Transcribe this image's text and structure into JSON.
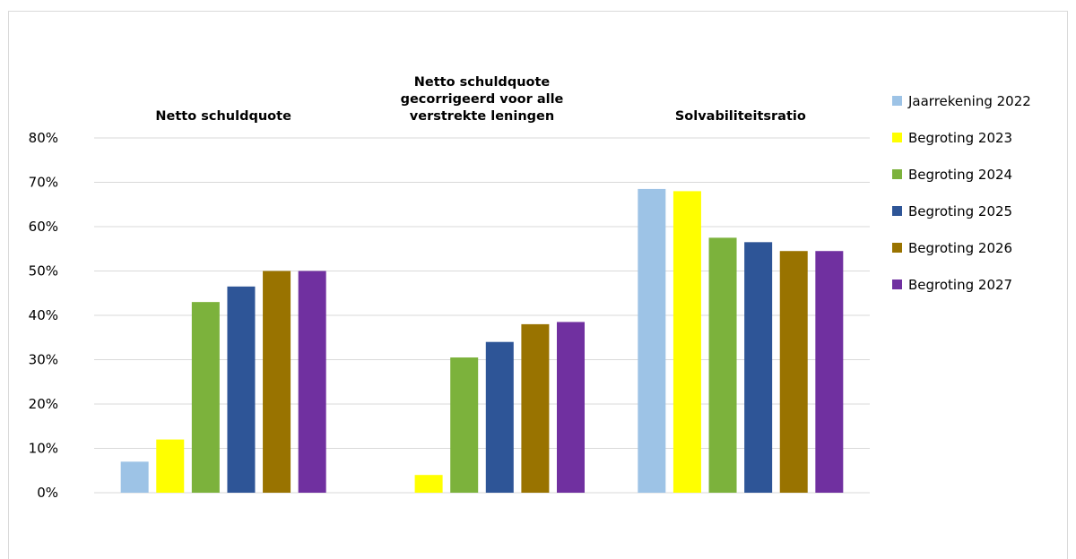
{
  "chart_data": {
    "type": "bar",
    "categories": [
      [
        "Netto schuldquote"
      ],
      [
        "Netto schuldquote",
        "gecorrigeerd voor alle",
        "verstrekte leningen"
      ],
      [
        "Solvabiliteitsratio"
      ]
    ],
    "y_ticks": [
      "0%",
      "10%",
      "20%",
      "30%",
      "40%",
      "50%",
      "60%",
      "70%",
      "80%"
    ],
    "ylim": [
      0,
      80
    ],
    "grid": true,
    "legend_position": "right",
    "series": [
      {
        "name": "Jaarrekening 2022",
        "color": "#9dc3e6",
        "values": [
          7,
          0,
          68.5
        ]
      },
      {
        "name": "Begroting 2023",
        "color": "#ffff00",
        "values": [
          12,
          4,
          68
        ]
      },
      {
        "name": "Begroting 2024",
        "color": "#7cb23c",
        "values": [
          43,
          30.5,
          57.5
        ]
      },
      {
        "name": "Begroting 2025",
        "color": "#2e5597",
        "values": [
          46.5,
          34,
          56.5
        ]
      },
      {
        "name": "Begroting 2026",
        "color": "#997300",
        "values": [
          50,
          38,
          54.5
        ]
      },
      {
        "name": "Begroting 2027",
        "color": "#7030a0",
        "values": [
          50,
          38.5,
          54.5
        ]
      }
    ]
  }
}
